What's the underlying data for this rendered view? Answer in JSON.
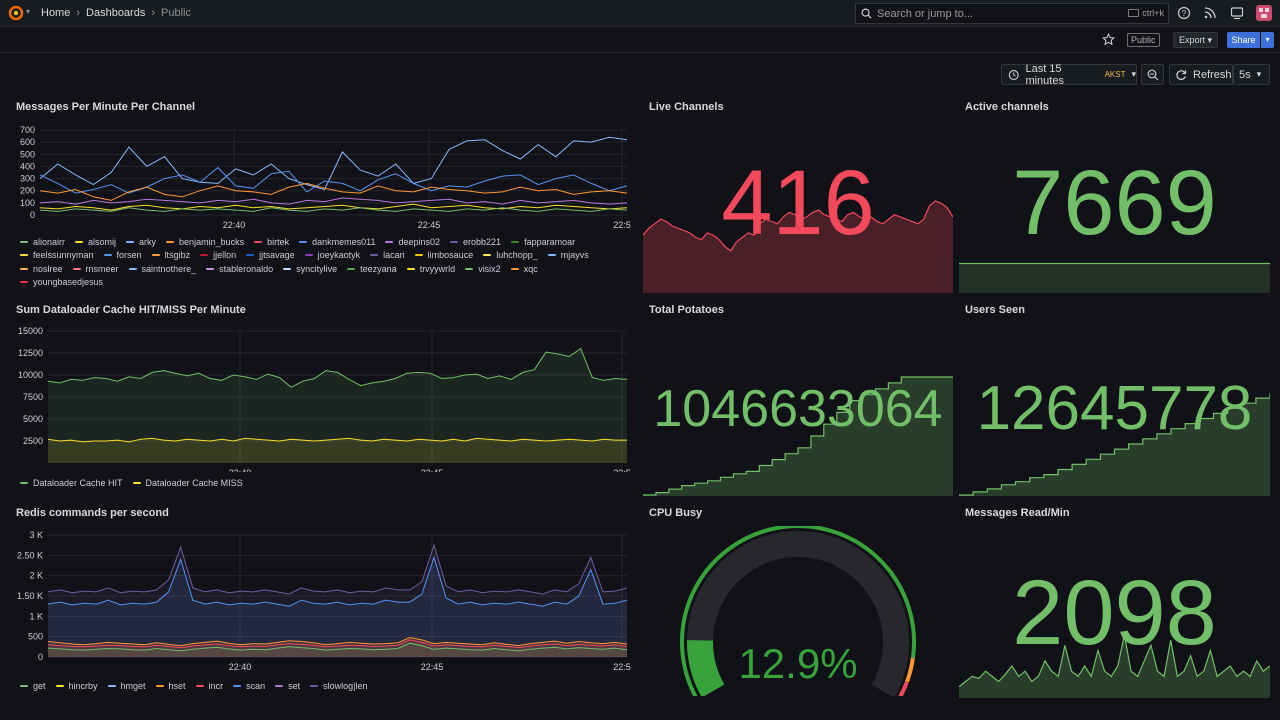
{
  "breadcrumbs": {
    "home": "Home",
    "dashboards": "Dashboards",
    "current": "Public"
  },
  "search": {
    "placeholder": "Search or jump to...",
    "shortcut": "ctrl+k"
  },
  "toolbar": {
    "public_label": "Public",
    "export_label": "Export",
    "share_label": "Share"
  },
  "timebar": {
    "range": "Last 15 minutes",
    "timezone": "AKST",
    "refresh_label": "Refresh",
    "interval": "5s"
  },
  "colors": {
    "green": "#73bf69",
    "red": "#f2495c",
    "yellow": "#fade2a",
    "blue": "#5794f2",
    "orange": "#ff9830",
    "purple": "#b877d9"
  },
  "panels": {
    "messages": {
      "title": "Messages Per Minute Per Channel",
      "legend": [
        {
          "name": "alionairr",
          "color": "#73bf69"
        },
        {
          "name": "alsomij",
          "color": "#fade2a"
        },
        {
          "name": "arky",
          "color": "#8ab8ff"
        },
        {
          "name": "benjamin_bucks",
          "color": "#ff9830"
        },
        {
          "name": "birtek",
          "color": "#f2495c"
        },
        {
          "name": "dankmemes011",
          "color": "#5794f2"
        },
        {
          "name": "deepins02",
          "color": "#b877d9"
        },
        {
          "name": "erobb221",
          "color": "#705da0"
        },
        {
          "name": "fapparamoar",
          "color": "#37872d"
        },
        {
          "name": "feelssunnyman",
          "color": "#fade2a"
        },
        {
          "name": "forsen",
          "color": "#5794f2"
        },
        {
          "name": "ltsgibz",
          "color": "#ff9830"
        },
        {
          "name": "jjellon",
          "color": "#c4162a"
        },
        {
          "name": "jjtsavage",
          "color": "#1f60c4"
        },
        {
          "name": "joeykaotyk",
          "color": "#8f3bb8"
        },
        {
          "name": "lacari",
          "color": "#6e5da0"
        },
        {
          "name": "limbosauce",
          "color": "#f2cc0c"
        },
        {
          "name": "luhchopp_",
          "color": "#ffee52"
        },
        {
          "name": "mjayvs",
          "color": "#8ab8ff"
        },
        {
          "name": "noslree",
          "color": "#ffb357"
        },
        {
          "name": "rnsmeer",
          "color": "#ff7383"
        },
        {
          "name": "saintnothere_",
          "color": "#8ab8ff"
        },
        {
          "name": "stableronaldo",
          "color": "#ca95e5"
        },
        {
          "name": "syncitylive",
          "color": "#c0d8ff"
        },
        {
          "name": "teezyana",
          "color": "#56a64b"
        },
        {
          "name": "trvyywrld",
          "color": "#fade2a"
        },
        {
          "name": "visix2",
          "color": "#73bf69"
        },
        {
          "name": "xqc",
          "color": "#ff9830"
        },
        {
          "name": "youngbasedjesus",
          "color": "#e02f44"
        }
      ]
    },
    "dataloader": {
      "title": "Sum Dataloader Cache HIT/MISS Per Minute",
      "legend": [
        {
          "name": "Dataloader Cache HIT",
          "color": "#73bf69"
        },
        {
          "name": "Dataloader Cache MISS",
          "color": "#fade2a"
        }
      ]
    },
    "redis": {
      "title": "Redis commands per second",
      "legend": [
        {
          "name": "get",
          "color": "#73bf69"
        },
        {
          "name": "hincrby",
          "color": "#fade2a"
        },
        {
          "name": "hmget",
          "color": "#8ab8ff"
        },
        {
          "name": "hset",
          "color": "#ff9830"
        },
        {
          "name": "incr",
          "color": "#f2495c"
        },
        {
          "name": "scan",
          "color": "#5794f2"
        },
        {
          "name": "set",
          "color": "#b877d9"
        },
        {
          "name": "slowlog|len",
          "color": "#705da0"
        }
      ]
    },
    "live_channels": {
      "title": "Live Channels",
      "value": "416",
      "color": "#f2495c"
    },
    "active_channels": {
      "title": "Active channels",
      "value": "7669",
      "color": "#73bf69"
    },
    "total_potatoes": {
      "title": "Total Potatoes",
      "value": "1046633064",
      "color": "#73bf69"
    },
    "users_seen": {
      "title": "Users Seen",
      "value": "12645778",
      "color": "#73bf69"
    },
    "cpu_busy": {
      "title": "CPU Busy",
      "value": "12.9%",
      "percent": 12.9,
      "color": "#37a33a"
    },
    "messages_read": {
      "title": "Messages Read/Min",
      "value": "2098",
      "color": "#73bf69"
    }
  },
  "chart_data": [
    {
      "type": "line",
      "title": "Messages Per Minute Per Channel",
      "x_ticks": [
        "22:40",
        "22:45",
        "22:5"
      ],
      "y_ticks": [
        "700",
        "600",
        "500",
        "400",
        "300",
        "200",
        "100",
        "0"
      ],
      "ylim": [
        0,
        700
      ],
      "series": [
        {
          "name": "arky",
          "color": "#8ab8ff",
          "values": [
            300,
            420,
            330,
            250,
            350,
            560,
            400,
            480,
            300,
            270,
            260,
            380,
            330,
            420,
            300,
            250,
            210,
            520,
            370,
            320,
            420,
            260,
            300,
            540,
            610,
            620,
            530,
            460,
            580,
            480,
            610,
            600,
            640,
            620
          ]
        },
        {
          "name": "forsen",
          "color": "#5794f2",
          "values": [
            330,
            260,
            180,
            210,
            250,
            180,
            230,
            300,
            330,
            270,
            390,
            240,
            220,
            340,
            360,
            190,
            280,
            260,
            200,
            290,
            340,
            260,
            200,
            240,
            230,
            280,
            320,
            330,
            250,
            300,
            330,
            260,
            200,
            240
          ]
        },
        {
          "name": "benjamin_bucks",
          "color": "#ff9830",
          "values": [
            200,
            180,
            210,
            150,
            120,
            190,
            230,
            170,
            150,
            200,
            240,
            200,
            190,
            170,
            230,
            260,
            220,
            190,
            180,
            240,
            200,
            190,
            230,
            210,
            200,
            180,
            190,
            230,
            200,
            210,
            170,
            190,
            200,
            180
          ]
        },
        {
          "name": "deepins02",
          "color": "#b877d9",
          "values": [
            100,
            110,
            90,
            120,
            100,
            110,
            130,
            120,
            110,
            100,
            120,
            110,
            130,
            100,
            90,
            120,
            110,
            140,
            130,
            120,
            100,
            110,
            120,
            130,
            100,
            110,
            90,
            120,
            100,
            110,
            120,
            100,
            90,
            100
          ]
        },
        {
          "name": "alsomij",
          "color": "#fade2a",
          "values": [
            60,
            50,
            70,
            60,
            40,
            70,
            80,
            60,
            50,
            70,
            60,
            80,
            60,
            70,
            50,
            60,
            70,
            80,
            60,
            50,
            70,
            90,
            60,
            70,
            80,
            60,
            50,
            70,
            60,
            80,
            70,
            60,
            50,
            60
          ]
        },
        {
          "name": "alionairr",
          "color": "#73bf69",
          "values": [
            40,
            30,
            50,
            40,
            30,
            60,
            40,
            30,
            50,
            40,
            50,
            40,
            30,
            60,
            40,
            30,
            50,
            40,
            60,
            40,
            30,
            50,
            40,
            30,
            50,
            40,
            60,
            40,
            30,
            50,
            40,
            30,
            50,
            40
          ]
        }
      ]
    },
    {
      "type": "area",
      "title": "Sum Dataloader Cache HIT/MISS Per Minute",
      "x_ticks": [
        "22:40",
        "22:45",
        "22:5"
      ],
      "y_ticks": [
        "15000",
        "12500",
        "10000",
        "7500",
        "5000",
        "2500"
      ],
      "ylim": [
        0,
        15000
      ],
      "series": [
        {
          "name": "Dataloader Cache HIT",
          "color": "#73bf69",
          "values": [
            9300,
            9100,
            9500,
            9400,
            9700,
            9600,
            9300,
            9800,
            9600,
            10300,
            10500,
            10200,
            9900,
            10200,
            9600,
            9400,
            10000,
            9800,
            9500,
            10100,
            9700,
            8600,
            9300,
            9600,
            10500,
            10300,
            9500,
            8800,
            9100,
            9300,
            9600,
            10200,
            10300,
            10200,
            9600,
            9700,
            10000,
            10100,
            9600,
            9900,
            9500,
            10300,
            10600,
            12600,
            12400,
            12100,
            13000,
            9700,
            9400,
            9600,
            9500
          ]
        },
        {
          "name": "Dataloader Cache MISS",
          "color": "#fade2a",
          "values": [
            2700,
            2500,
            2600,
            2400,
            2500,
            2500,
            2600,
            2400,
            2700,
            2800,
            2600,
            2500,
            2700,
            2600,
            2500,
            2700,
            2500,
            2800,
            2700,
            2600,
            2500,
            2700,
            2600,
            2500,
            2600,
            2700,
            2800,
            2600,
            2500,
            2700,
            2600,
            2500,
            2700,
            2600,
            2500,
            2700,
            2500,
            2800,
            2700,
            2600,
            2500,
            2700,
            2600,
            2500,
            2600,
            2700,
            2600,
            2500,
            2700,
            2600,
            2600
          ]
        }
      ]
    },
    {
      "type": "area",
      "title": "Redis commands per second",
      "x_ticks": [
        "22:40",
        "22:45",
        "22:5"
      ],
      "y_ticks": [
        "3 K",
        "2.50 K",
        "2 K",
        "1.50 K",
        "1 K",
        "500",
        "0"
      ],
      "ylim": [
        0,
        3000
      ],
      "series": [
        {
          "name": "slowlog|len",
          "color": "#705da0",
          "values": [
            1600,
            1650,
            1580,
            1620,
            1600,
            1700,
            1580,
            1620,
            1600,
            1650,
            1900,
            2700,
            1700,
            1600,
            1650,
            1580,
            1620,
            1600,
            1650,
            1600,
            1550,
            1700,
            1620,
            1600,
            1650,
            1580,
            1620,
            1600,
            1700,
            1650,
            1650,
            1850,
            2750,
            1750,
            1600,
            1650,
            1580,
            1620,
            1600,
            1650,
            1600,
            1550,
            1650,
            1600,
            1800,
            2450,
            1600,
            1620,
            1700
          ]
        },
        {
          "name": "scan",
          "color": "#5794f2",
          "values": [
            1300,
            1350,
            1280,
            1320,
            1300,
            1400,
            1280,
            1320,
            1300,
            1350,
            1600,
            2400,
            1400,
            1300,
            1350,
            1280,
            1320,
            1300,
            1350,
            1300,
            1250,
            1400,
            1320,
            1300,
            1350,
            1280,
            1320,
            1300,
            1400,
            1350,
            1350,
            1550,
            2450,
            1450,
            1300,
            1350,
            1280,
            1320,
            1300,
            1350,
            1300,
            1250,
            1350,
            1300,
            1500,
            2150,
            1300,
            1320,
            1400
          ]
        },
        {
          "name": "hset",
          "color": "#ff9830",
          "values": [
            380,
            350,
            320,
            300,
            330,
            360,
            340,
            320,
            300,
            350,
            310,
            280,
            330,
            360,
            390,
            340,
            300,
            330,
            320,
            360,
            400,
            380,
            350,
            300,
            330,
            360,
            340,
            320,
            330,
            350,
            480,
            420,
            330,
            360,
            340,
            320,
            300,
            350,
            310,
            280,
            330,
            360,
            390,
            340,
            380,
            350,
            330,
            360,
            320
          ]
        },
        {
          "name": "incr",
          "color": "#f2495c",
          "values": [
            300,
            280,
            260,
            250,
            270,
            290,
            280,
            260,
            250,
            290,
            260,
            230,
            270,
            300,
            320,
            280,
            250,
            270,
            260,
            300,
            330,
            310,
            290,
            250,
            270,
            290,
            280,
            260,
            270,
            290,
            420,
            360,
            270,
            300,
            280,
            260,
            250,
            290,
            260,
            230,
            270,
            300,
            320,
            280,
            310,
            290,
            270,
            300,
            260
          ]
        },
        {
          "name": "get",
          "color": "#73bf69",
          "values": [
            220,
            200,
            180,
            170,
            190,
            210,
            200,
            180,
            170,
            210,
            180,
            150,
            190,
            220,
            240,
            200,
            170,
            190,
            180,
            220,
            250,
            230,
            210,
            170,
            190,
            210,
            200,
            180,
            190,
            210,
            340,
            280,
            190,
            220,
            200,
            180,
            170,
            210,
            180,
            150,
            190,
            220,
            240,
            200,
            230,
            210,
            190,
            220,
            180
          ]
        }
      ]
    },
    {
      "type": "area",
      "title": "Live Channels",
      "values": [
        250,
        280,
        300,
        320,
        310,
        290,
        280,
        270,
        260,
        240,
        230,
        260,
        250,
        230,
        200,
        180,
        220,
        240,
        260,
        250,
        300,
        320,
        310,
        300,
        330,
        350,
        340,
        320,
        330,
        350,
        360,
        340,
        330,
        320,
        310,
        340,
        350,
        330,
        320,
        330,
        310,
        300,
        320,
        340,
        330,
        320,
        310,
        300,
        320,
        380,
        400,
        390,
        370,
        330
      ]
    },
    {
      "type": "area",
      "title": "Total Potatoes",
      "values": [
        0,
        2,
        5,
        8,
        10,
        12,
        15,
        18,
        20,
        25,
        30,
        35,
        40,
        50,
        60,
        70,
        80,
        85,
        90,
        95,
        100,
        100,
        100,
        100,
        100
      ]
    },
    {
      "type": "area",
      "title": "Users Seen",
      "values": [
        0,
        3,
        6,
        10,
        13,
        17,
        20,
        25,
        30,
        35,
        40,
        45,
        50,
        55,
        60,
        65,
        70,
        75,
        80,
        85,
        90,
        95,
        100
      ]
    },
    {
      "type": "area",
      "title": "Messages Read/Min",
      "values": [
        10,
        15,
        20,
        18,
        25,
        20,
        15,
        22,
        30,
        20,
        25,
        15,
        20,
        35,
        25,
        20,
        50,
        25,
        20,
        30,
        20,
        45,
        25,
        20,
        30,
        60,
        25,
        20,
        35,
        50,
        25,
        20,
        55,
        20,
        25,
        40,
        20,
        25,
        45,
        20,
        25,
        30,
        20,
        25,
        20,
        35,
        25,
        30
      ]
    }
  ]
}
